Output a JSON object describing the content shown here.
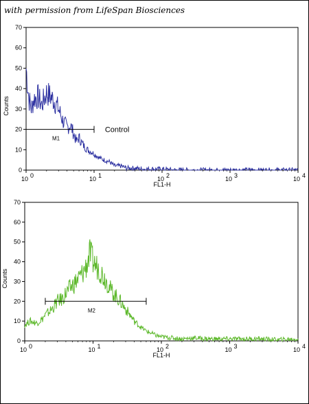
{
  "watermark": "with permission from LifeSpan Biosciences",
  "chart_data": [
    {
      "type": "line",
      "title": "",
      "xlabel": "FL1-H",
      "ylabel": "Counts",
      "xscale": "log",
      "xlim": [
        1,
        10000
      ],
      "ylim": [
        0,
        70
      ],
      "yticks": [
        "0",
        "10",
        "20",
        "30",
        "40",
        "50",
        "60",
        "70"
      ],
      "xticks": [
        {
          "base": "10",
          "exp": "0",
          "value": 1
        },
        {
          "base": "10",
          "exp": "1",
          "value": 10
        },
        {
          "base": "10",
          "exp": "2",
          "value": 100
        },
        {
          "base": "10",
          "exp": "3",
          "value": 1000
        },
        {
          "base": "10",
          "exp": "4",
          "value": 10000
        }
      ],
      "color": "#2b2fa0",
      "grid": false,
      "series": [
        {
          "x": [
            1,
            1.1,
            1.2,
            1.3,
            1.5,
            1.7,
            2,
            2.3,
            2.6,
            3,
            3.5,
            4,
            4.5,
            5,
            5.5,
            6,
            7,
            8,
            9,
            10,
            12,
            14,
            17,
            20,
            25,
            30,
            40,
            50,
            70,
            100,
            150,
            300,
            1000,
            3000,
            10000
          ],
          "y": [
            50,
            35,
            30,
            35,
            36,
            32,
            38,
            36,
            34,
            30,
            24,
            21,
            22,
            18,
            14,
            16,
            12,
            10,
            9,
            8,
            6,
            5,
            4,
            2,
            2,
            1,
            1,
            0.5,
            0.5,
            0.5,
            0,
            0,
            0,
            0,
            0
          ]
        }
      ],
      "markers": [
        {
          "label": "M1",
          "x_start": 1,
          "x_end": 10,
          "y": 20
        }
      ],
      "annotations": [
        {
          "text": "Control",
          "x": 12,
          "y": 20
        }
      ]
    },
    {
      "type": "line",
      "title": "",
      "xlabel": "FL1-H",
      "ylabel": "Counts",
      "xscale": "log",
      "xlim": [
        1,
        10000
      ],
      "ylim": [
        0,
        70
      ],
      "yticks": [
        "0",
        "10",
        "20",
        "30",
        "40",
        "50",
        "60",
        "70"
      ],
      "xticks": [
        {
          "base": "10",
          "exp": "0",
          "value": 1
        },
        {
          "base": "10",
          "exp": "1",
          "value": 10
        },
        {
          "base": "10",
          "exp": "2",
          "value": 100
        },
        {
          "base": "10",
          "exp": "3",
          "value": 1000
        },
        {
          "base": "10",
          "exp": "4",
          "value": 10000
        }
      ],
      "color": "#5cb82a",
      "grid": false,
      "series": [
        {
          "x": [
            1,
            1.2,
            1.5,
            1.8,
            2,
            2.5,
            3,
            3.5,
            4,
            5,
            6,
            7,
            8,
            9,
            10,
            11,
            12,
            14,
            16,
            18,
            20,
            25,
            30,
            35,
            40,
            50,
            60,
            70,
            80,
            100,
            150,
            200,
            300,
            500,
            1000,
            2000,
            3000,
            5000,
            10000
          ],
          "y": [
            8,
            10,
            9,
            11,
            13,
            16,
            20,
            21,
            24,
            28,
            31,
            34,
            38,
            44,
            40,
            38,
            37,
            33,
            30,
            26,
            24,
            20,
            16,
            13,
            10,
            7,
            5,
            4,
            3,
            2,
            1.5,
            1,
            1.5,
            1,
            1,
            1,
            1,
            0.5,
            1
          ]
        }
      ],
      "markers": [
        {
          "label": "M2",
          "x_start": 2,
          "x_end": 60,
          "y": 20
        }
      ],
      "annotations": []
    }
  ]
}
